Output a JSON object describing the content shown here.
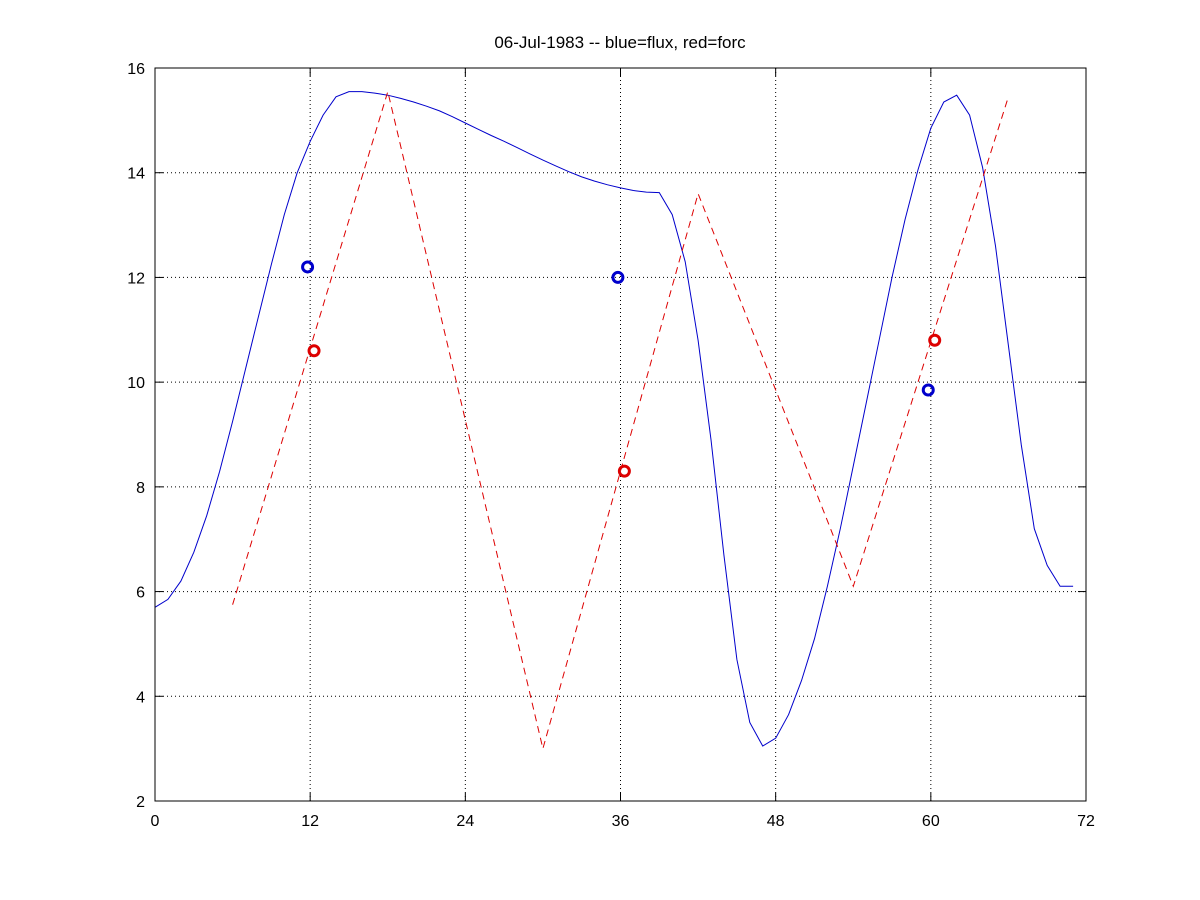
{
  "chart_data": {
    "type": "line",
    "title": "06-Jul-1983 -- blue=flux, red=forc",
    "xlabel": "",
    "ylabel": "",
    "xlim": [
      0,
      72
    ],
    "ylim": [
      2,
      16
    ],
    "xticks": [
      0,
      12,
      24,
      36,
      48,
      60,
      72
    ],
    "yticks": [
      2,
      4,
      6,
      8,
      10,
      12,
      14,
      16
    ],
    "grid": true,
    "colors": {
      "flux": "#0000cc",
      "forc": "#dd0000"
    },
    "series": [
      {
        "key": "flux",
        "style": "solid",
        "x": [
          0,
          1,
          2,
          3,
          4,
          5,
          6,
          7,
          8,
          9,
          10,
          11,
          12,
          13,
          14,
          15,
          16,
          17,
          18,
          19,
          20,
          21,
          22,
          23,
          24,
          25,
          26,
          27,
          28,
          29,
          30,
          31,
          32,
          33,
          34,
          35,
          36,
          37,
          38,
          39,
          40,
          41,
          42,
          43,
          44,
          45,
          46,
          47,
          48,
          49,
          50,
          51,
          52,
          53,
          54,
          55,
          56,
          57,
          58,
          59,
          60,
          61,
          62,
          63,
          64,
          65,
          66,
          67,
          68,
          69,
          70,
          71
        ],
        "y": [
          5.7,
          5.85,
          6.2,
          6.75,
          7.45,
          8.3,
          9.25,
          10.25,
          11.25,
          12.25,
          13.2,
          14.0,
          14.6,
          15.1,
          15.45,
          15.55,
          15.55,
          15.52,
          15.48,
          15.42,
          15.35,
          15.27,
          15.18,
          15.07,
          14.95,
          14.83,
          14.71,
          14.6,
          14.48,
          14.36,
          14.24,
          14.13,
          14.02,
          13.92,
          13.84,
          13.77,
          13.71,
          13.66,
          13.63,
          13.62,
          13.2,
          12.3,
          10.8,
          8.9,
          6.7,
          4.7,
          3.5,
          3.05,
          3.2,
          3.65,
          4.3,
          5.1,
          6.1,
          7.2,
          8.4,
          9.6,
          10.8,
          12.0,
          13.1,
          14.05,
          14.85,
          15.35,
          15.48,
          15.1,
          14.1,
          12.6,
          10.7,
          8.8,
          7.2,
          6.5,
          6.1,
          6.1
        ]
      },
      {
        "key": "forc",
        "style": "dashed",
        "x": [
          6,
          18,
          30,
          42,
          54,
          66
        ],
        "y": [
          5.75,
          15.55,
          3.0,
          13.6,
          6.1,
          15.45
        ]
      }
    ],
    "markers": [
      {
        "key": "flux",
        "x": 11.8,
        "y": 12.2
      },
      {
        "key": "flux",
        "x": 35.8,
        "y": 12.0
      },
      {
        "key": "flux",
        "x": 59.8,
        "y": 9.85
      },
      {
        "key": "forc",
        "x": 12.3,
        "y": 10.6
      },
      {
        "key": "forc",
        "x": 36.3,
        "y": 8.3
      },
      {
        "key": "forc",
        "x": 60.3,
        "y": 10.8
      }
    ]
  }
}
